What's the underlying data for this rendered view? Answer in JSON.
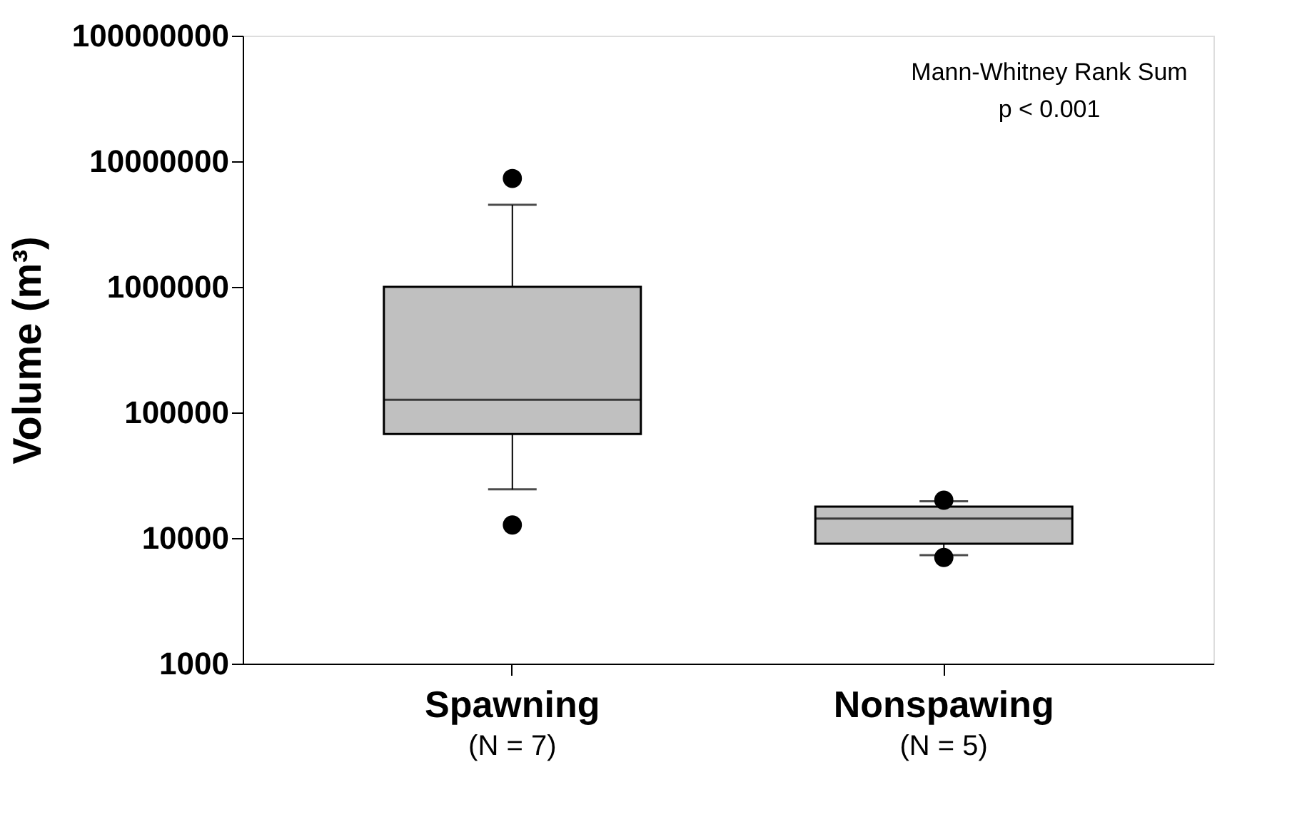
{
  "chart_data": {
    "type": "box",
    "ylabel": "Volume (m³)",
    "categories": [
      "Spawning",
      "Nonspawing"
    ],
    "log": true,
    "ylim": [
      1000,
      100000000
    ],
    "yticks": [
      1000,
      10000,
      100000,
      1000000,
      10000000,
      100000000
    ],
    "marker": "circle",
    "series": [
      {
        "color": "#c0c0c0",
        "boxes": [
          {
            "low": 24400,
            "q1": 67300,
            "median": 126000,
            "q3": 1000000,
            "high": 4500000,
            "outliers": [
              7300000,
              12700
            ]
          },
          {
            "low": 7300,
            "q1": 9000,
            "median": 14300,
            "q3": 17800,
            "high": 19600,
            "outliers": [
              20000,
              7000
            ]
          }
        ]
      }
    ],
    "annotations": [
      "Mann-Whitney Rank Sum",
      "p < 0.001",
      "(N = 7)",
      "(N = 5)"
    ]
  }
}
